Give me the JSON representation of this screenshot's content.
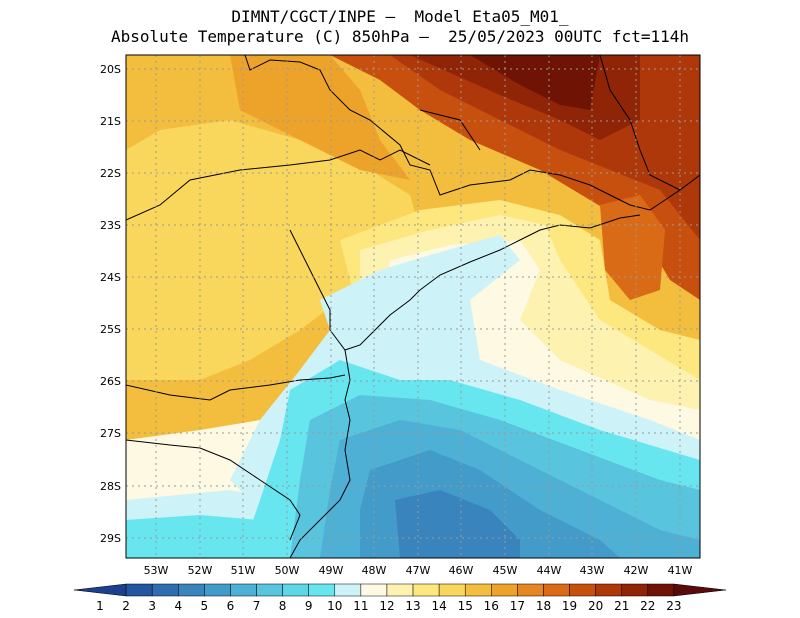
{
  "title": {
    "line1": "DIMNT/CGCT/INPE –  Model Eta05_M01_",
    "line2": "Absolute Temperature (C) 850hPa –  25/05/2023 00UTC fct=114h"
  },
  "axes": {
    "lat_labels": [
      "20S",
      "21S",
      "22S",
      "23S",
      "24S",
      "25S",
      "26S",
      "27S",
      "28S",
      "29S"
    ],
    "lon_labels": [
      "53W",
      "52W",
      "51W",
      "50W",
      "49W",
      "48W",
      "47W",
      "46W",
      "45W",
      "44W",
      "43W",
      "42W",
      "41W"
    ]
  },
  "colorbar": {
    "labels": [
      "1",
      "2",
      "3",
      "4",
      "5",
      "6",
      "7",
      "8",
      "9",
      "10",
      "11",
      "12",
      "13",
      "14",
      "15",
      "16",
      "17",
      "18",
      "19",
      "20",
      "21",
      "22",
      "23"
    ],
    "colors": [
      "#1c3f8f",
      "#2356a0",
      "#2f6db0",
      "#3984bd",
      "#439bc9",
      "#4db0d4",
      "#58c4dd",
      "#5dd6e6",
      "#67e6f0",
      "#cdf3f9",
      "#fdf9e2",
      "#fdf2b0",
      "#fde77f",
      "#f9d65c",
      "#f3be3e",
      "#eda22a",
      "#e58620",
      "#d96a16",
      "#c8500f",
      "#ae380a",
      "#8f2407",
      "#6f1405",
      "#5a0a0c"
    ]
  }
}
